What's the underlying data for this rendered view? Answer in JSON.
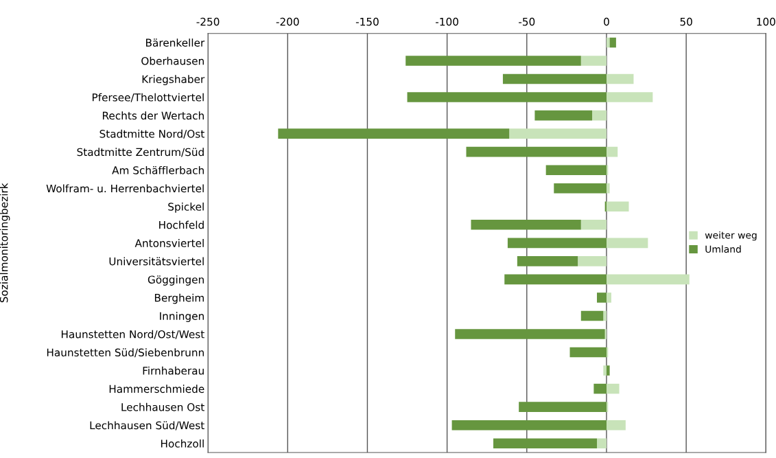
{
  "chart_data": {
    "type": "bar",
    "orientation": "horizontal",
    "stacked": true,
    "ylabel": "Sozialmonitoringbezirk",
    "categories": [
      "Bärenkeller",
      "Oberhausen",
      "Kriegshaber",
      "Pfersee/Thelottviertel",
      "Rechts der Wertach",
      "Stadtmitte Nord/Ost",
      "Stadtmitte Zentrum/Süd",
      "Am Schäfflerbach",
      "Wolfram- u. Herrenbachviertel",
      "Spickel",
      "Hochfeld",
      "Antonsviertel",
      "Universitätsviertel",
      "Göggingen",
      "Bergheim",
      "Inningen",
      "Haunstetten Nord/Ost/West",
      "Haunstetten Süd/Siebenbrunn",
      "Firnhaberau",
      "Hammerschmiede",
      "Lechhausen Ost",
      "Lechhausen Süd/West",
      "Hochzoll"
    ],
    "series": [
      {
        "name": "weiter weg",
        "color": "#c8e3b9",
        "values": [
          2,
          -16,
          17,
          29,
          -9,
          -61,
          7,
          1,
          2,
          14,
          -16,
          26,
          -18,
          52,
          3,
          -2,
          -1,
          1,
          -2,
          8,
          1,
          12,
          -6
        ]
      },
      {
        "name": "Umland",
        "color": "#66963f",
        "values": [
          4,
          -110,
          -65,
          -125,
          -36,
          -145,
          -88,
          -38,
          -33,
          -1,
          -69,
          -62,
          -38,
          -64,
          -6,
          -14,
          -94,
          -23,
          2,
          -8,
          -55,
          -97,
          -65
        ]
      }
    ],
    "xlim": [
      -250,
      100
    ],
    "xticks": [
      -250,
      -200,
      -150,
      -100,
      -50,
      0,
      50,
      100
    ],
    "grid": "x",
    "legend": "center right"
  }
}
